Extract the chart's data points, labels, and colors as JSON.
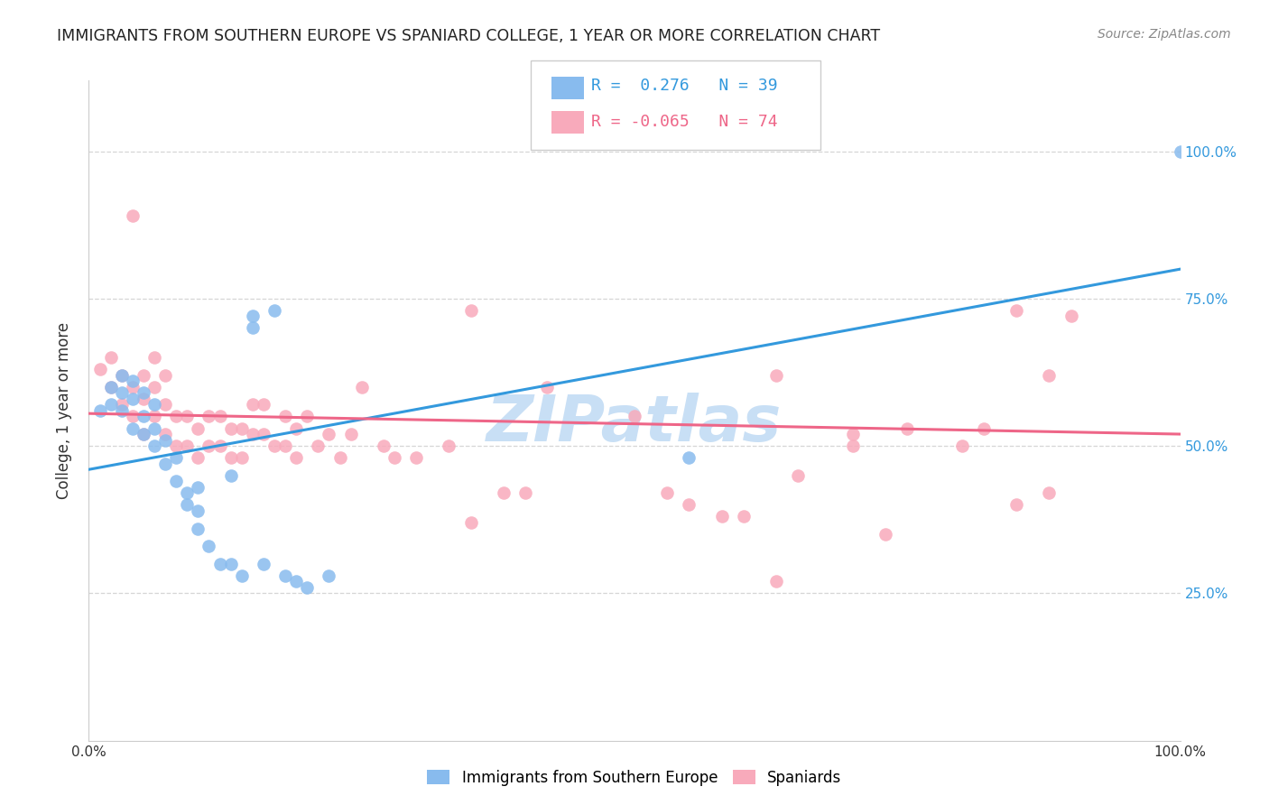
{
  "title": "IMMIGRANTS FROM SOUTHERN EUROPE VS SPANIARD COLLEGE, 1 YEAR OR MORE CORRELATION CHART",
  "source": "Source: ZipAtlas.com",
  "ylabel": "College, 1 year or more",
  "xlim": [
    0.0,
    1.0
  ],
  "ylim": [
    0.0,
    1.12
  ],
  "ytick_values": [
    0.25,
    0.5,
    0.75,
    1.0
  ],
  "ytick_labels": [
    "25.0%",
    "50.0%",
    "75.0%",
    "100.0%"
  ],
  "legend1_r": " 0.276",
  "legend1_n": "39",
  "legend2_r": "-0.065",
  "legend2_n": "74",
  "blue_color": "#88bbee",
  "pink_color": "#f8aabb",
  "blue_line_color": "#3399dd",
  "pink_line_color": "#ee6688",
  "right_axis_color": "#3399dd",
  "watermark_color": "#c8dff5",
  "blue_line_start_y": 0.46,
  "blue_line_end_y": 0.8,
  "pink_line_start_y": 0.555,
  "pink_line_end_y": 0.52,
  "blue_scatter_x": [
    0.01,
    0.02,
    0.02,
    0.03,
    0.03,
    0.03,
    0.04,
    0.04,
    0.04,
    0.05,
    0.05,
    0.05,
    0.06,
    0.06,
    0.06,
    0.07,
    0.07,
    0.08,
    0.08,
    0.09,
    0.1,
    0.1,
    0.11,
    0.12,
    0.13,
    0.14,
    0.15,
    0.16,
    0.17,
    0.18,
    0.19,
    0.2,
    0.22,
    0.15,
    0.09,
    0.1,
    0.13,
    0.55,
    1.0
  ],
  "blue_scatter_y": [
    0.56,
    0.6,
    0.57,
    0.56,
    0.59,
    0.62,
    0.53,
    0.58,
    0.61,
    0.52,
    0.55,
    0.59,
    0.5,
    0.53,
    0.57,
    0.47,
    0.51,
    0.44,
    0.48,
    0.4,
    0.36,
    0.39,
    0.33,
    0.3,
    0.3,
    0.28,
    0.7,
    0.3,
    0.73,
    0.28,
    0.27,
    0.26,
    0.28,
    0.72,
    0.42,
    0.43,
    0.45,
    0.48,
    1.0
  ],
  "pink_scatter_x": [
    0.01,
    0.02,
    0.02,
    0.03,
    0.03,
    0.04,
    0.04,
    0.05,
    0.05,
    0.05,
    0.06,
    0.06,
    0.06,
    0.07,
    0.07,
    0.07,
    0.08,
    0.08,
    0.09,
    0.09,
    0.1,
    0.1,
    0.11,
    0.11,
    0.12,
    0.12,
    0.13,
    0.13,
    0.14,
    0.14,
    0.15,
    0.15,
    0.16,
    0.16,
    0.17,
    0.18,
    0.18,
    0.19,
    0.19,
    0.2,
    0.21,
    0.22,
    0.23,
    0.24,
    0.25,
    0.27,
    0.28,
    0.3,
    0.33,
    0.35,
    0.38,
    0.4,
    0.42,
    0.35,
    0.5,
    0.53,
    0.55,
    0.58,
    0.6,
    0.63,
    0.65,
    0.7,
    0.73,
    0.75,
    0.8,
    0.85,
    0.88,
    0.9,
    0.63,
    0.7,
    0.82,
    0.85,
    0.88,
    0.04
  ],
  "pink_scatter_y": [
    0.63,
    0.6,
    0.65,
    0.57,
    0.62,
    0.55,
    0.6,
    0.52,
    0.58,
    0.62,
    0.55,
    0.6,
    0.65,
    0.52,
    0.57,
    0.62,
    0.5,
    0.55,
    0.5,
    0.55,
    0.48,
    0.53,
    0.5,
    0.55,
    0.5,
    0.55,
    0.48,
    0.53,
    0.48,
    0.53,
    0.52,
    0.57,
    0.52,
    0.57,
    0.5,
    0.5,
    0.55,
    0.48,
    0.53,
    0.55,
    0.5,
    0.52,
    0.48,
    0.52,
    0.6,
    0.5,
    0.48,
    0.48,
    0.5,
    0.37,
    0.42,
    0.42,
    0.6,
    0.73,
    0.55,
    0.42,
    0.4,
    0.38,
    0.38,
    0.62,
    0.45,
    0.52,
    0.35,
    0.53,
    0.5,
    0.4,
    0.42,
    0.72,
    0.27,
    0.5,
    0.53,
    0.73,
    0.62,
    0.89
  ]
}
